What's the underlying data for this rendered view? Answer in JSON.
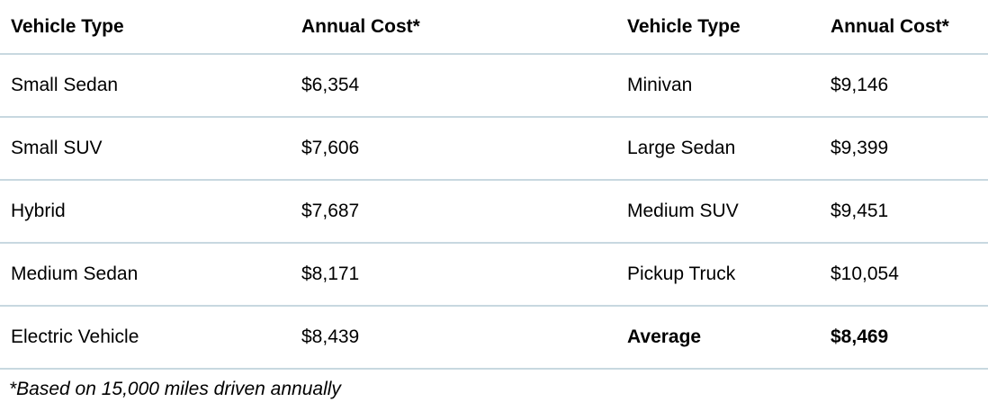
{
  "table": {
    "headers": [
      "Vehicle Type",
      "Annual Cost*",
      "Vehicle Type",
      "Annual Cost*"
    ],
    "rows": [
      [
        "Small Sedan",
        "$6,354",
        "Minivan",
        "$9,146"
      ],
      [
        "Small SUV",
        "$7,606",
        "Large Sedan",
        "$9,399"
      ],
      [
        "Hybrid",
        "$7,687",
        "Medium SUV",
        "$9,451"
      ],
      [
        "Medium Sedan",
        "$8,171",
        "Pickup Truck",
        "$10,054"
      ],
      [
        "Electric Vehicle",
        "$8,439",
        "Average",
        "$8,469"
      ]
    ],
    "footnote": "*Based on 15,000 miles driven annually"
  },
  "colors": {
    "divider": "#c8d8e0",
    "text": "#000000",
    "background": "#ffffff"
  },
  "chart_data": {
    "type": "table",
    "columns": [
      "Vehicle Type",
      "Annual Cost*",
      "Vehicle Type",
      "Annual Cost*"
    ],
    "data": [
      {
        "vehicle_type": "Small Sedan",
        "annual_cost_usd": 6354
      },
      {
        "vehicle_type": "Small SUV",
        "annual_cost_usd": 7606
      },
      {
        "vehicle_type": "Hybrid",
        "annual_cost_usd": 7687
      },
      {
        "vehicle_type": "Medium Sedan",
        "annual_cost_usd": 8171
      },
      {
        "vehicle_type": "Electric Vehicle",
        "annual_cost_usd": 8439
      },
      {
        "vehicle_type": "Minivan",
        "annual_cost_usd": 9146
      },
      {
        "vehicle_type": "Large Sedan",
        "annual_cost_usd": 9399
      },
      {
        "vehicle_type": "Medium SUV",
        "annual_cost_usd": 9451
      },
      {
        "vehicle_type": "Pickup Truck",
        "annual_cost_usd": 10054
      }
    ],
    "average_annual_cost_usd": 8469,
    "footnote": "*Based on 15,000 miles driven annually",
    "notes": "Two-pane table layout: left pane lists cheaper vehicle types, right pane lists costlier ones plus bold Average row"
  }
}
